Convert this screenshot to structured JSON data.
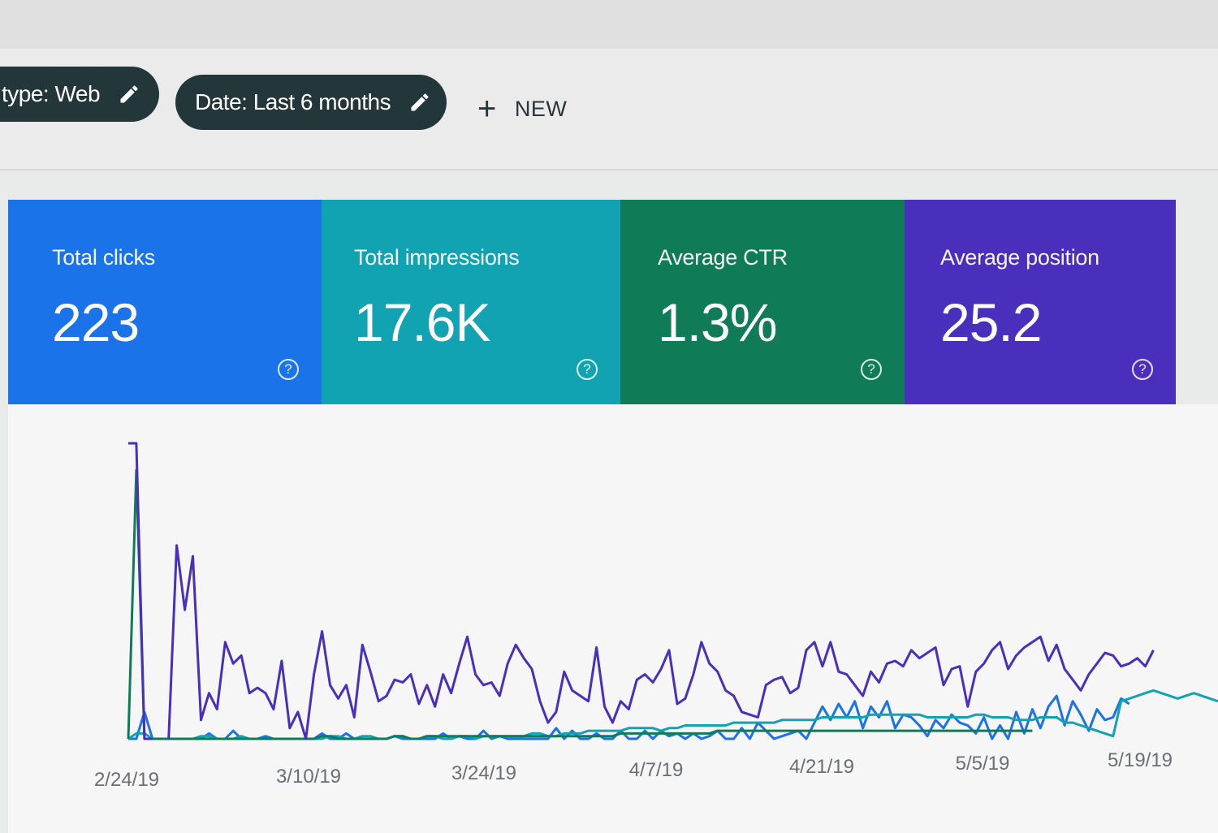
{
  "filters": {
    "chip1_label": "type: Web",
    "chip2_label": "Date: Last 6 months",
    "new_label": "NEW"
  },
  "metrics": [
    {
      "label": "Total clicks",
      "value": "223",
      "color": "#1a73e8"
    },
    {
      "label": "Total impressions",
      "value": "17.6K",
      "color": "#12a3b2"
    },
    {
      "label": "Average CTR",
      "value": "1.3%",
      "color": "#0f7b57"
    },
    {
      "label": "Average position",
      "value": "25.2",
      "color": "#4a2fbd"
    }
  ],
  "chart_data": {
    "type": "line",
    "x_tick_labels": [
      "2/24/19",
      "3/10/19",
      "3/24/19",
      "4/7/19",
      "4/21/19",
      "5/5/19",
      "5/19/19"
    ],
    "series": [
      {
        "color": "#1a73e8",
        "values": [
          0,
          0,
          10,
          0,
          0,
          0,
          0,
          0,
          0,
          0,
          2,
          0,
          0,
          3,
          0,
          0,
          0,
          1,
          0,
          0,
          0,
          0,
          0,
          0,
          2,
          0,
          0,
          2,
          0,
          0,
          0,
          0,
          0,
          1,
          0,
          0,
          0,
          0,
          0,
          2,
          0,
          1,
          0,
          0,
          3,
          0,
          1,
          0,
          0,
          0,
          0,
          0,
          0,
          4,
          0,
          3,
          0,
          0,
          2,
          0,
          0,
          3,
          0,
          0,
          3,
          0,
          3,
          1,
          2,
          0,
          2,
          0,
          1,
          3,
          0,
          0,
          4,
          0,
          6,
          3,
          0,
          1,
          2,
          3,
          0,
          6,
          12,
          7,
          13,
          8,
          14,
          4,
          12,
          8,
          14,
          4,
          9,
          8,
          5,
          1,
          7,
          4,
          9,
          6,
          5,
          2,
          8,
          0,
          5,
          0,
          10,
          2,
          11,
          4,
          12,
          16,
          5,
          14,
          9,
          3,
          11,
          7,
          8,
          15,
          13
        ]
      },
      {
        "color": "#12a3b2",
        "values": [
          0,
          2,
          2,
          0,
          0,
          0,
          0,
          0,
          0,
          1,
          1,
          0,
          0,
          0,
          1,
          0,
          0,
          0,
          0,
          0,
          0,
          0,
          0,
          0,
          0,
          1,
          1,
          0,
          0,
          1,
          1,
          0,
          0,
          1,
          1,
          0,
          0,
          1,
          1,
          0,
          0,
          1,
          1,
          0,
          1,
          1,
          1,
          1,
          1,
          1,
          2,
          2,
          1,
          1,
          2,
          2,
          2,
          3,
          3,
          3,
          3,
          3,
          4,
          4,
          4,
          4,
          3,
          4,
          4,
          5,
          5,
          5,
          5,
          5,
          5,
          6,
          6,
          6,
          6,
          6,
          6,
          7,
          7,
          7,
          7,
          7,
          8,
          8,
          8,
          8,
          8,
          8,
          9,
          9,
          9,
          9,
          9,
          9,
          9,
          8,
          8,
          8,
          8,
          8,
          8,
          9,
          9,
          8,
          8,
          8,
          7,
          7,
          7,
          8,
          8,
          8,
          6,
          6,
          5,
          4,
          3,
          2,
          1,
          14,
          15,
          16,
          17,
          18,
          17,
          16,
          15,
          16,
          17,
          16,
          15,
          14
        ]
      },
      {
        "color": "#0f7b57",
        "values": [
          0,
          100,
          0,
          0,
          0,
          0,
          0,
          0,
          0,
          0,
          0,
          0,
          0,
          0,
          0,
          0,
          0,
          0,
          0,
          0,
          0,
          0,
          0,
          0,
          1,
          1,
          0,
          0,
          0,
          0,
          0,
          0,
          0,
          1,
          1,
          0,
          0,
          1,
          1,
          1,
          1,
          1,
          1,
          1,
          1,
          1,
          1,
          1,
          1,
          1,
          1,
          1,
          1,
          1,
          1,
          1,
          1,
          1,
          1,
          1,
          1,
          2,
          2,
          2,
          2,
          2,
          2,
          2,
          2,
          2,
          2,
          2,
          2,
          3,
          3,
          3,
          3,
          3,
          3,
          3,
          3,
          3,
          3,
          3,
          3,
          3,
          3,
          3,
          3,
          3,
          3,
          3,
          3,
          3,
          3,
          3,
          3,
          3,
          3,
          3,
          3,
          3,
          3,
          3,
          3,
          3,
          3,
          3,
          3,
          3,
          3,
          3,
          3
        ]
      },
      {
        "color": "#4a2fbd",
        "values": [
          110,
          110,
          0,
          0,
          null,
          0,
          72,
          48,
          68,
          7,
          17,
          11,
          36,
          28,
          31,
          17,
          19,
          17,
          11,
          29,
          4,
          10,
          0,
          24,
          40,
          20,
          15,
          20,
          8,
          35,
          25,
          14,
          16,
          22,
          21,
          24,
          13,
          20,
          12,
          24,
          17,
          28,
          38,
          24,
          20,
          21,
          16,
          28,
          35,
          30,
          26,
          14,
          6,
          10,
          25,
          18,
          16,
          14,
          34,
          12,
          6,
          14,
          11,
          22,
          24,
          21,
          26,
          33,
          13,
          15,
          24,
          36,
          28,
          25,
          18,
          16,
          10,
          9,
          8,
          20,
          22,
          23,
          17,
          19,
          33,
          36,
          27,
          36,
          25,
          24,
          20,
          16,
          25,
          21,
          28,
          29,
          27,
          33,
          30,
          32,
          34,
          20,
          26,
          27,
          12,
          25,
          28,
          33,
          36,
          26,
          31,
          34,
          36,
          38,
          29,
          35,
          26,
          22,
          18,
          24,
          28,
          32,
          31,
          27,
          28,
          30,
          27,
          33
        ]
      }
    ]
  }
}
